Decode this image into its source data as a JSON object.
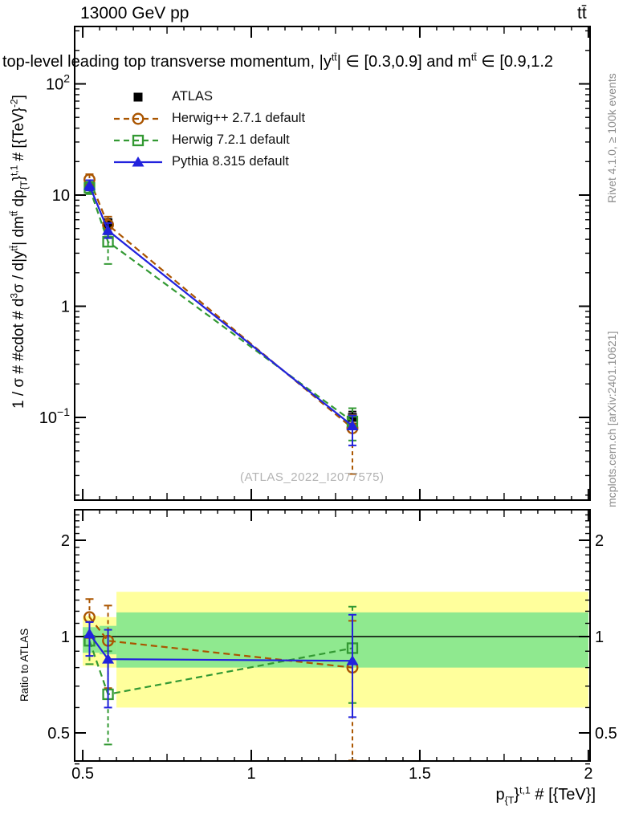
{
  "header": {
    "left": "13000 GeV pp",
    "right": "tt̄"
  },
  "side_texts": {
    "rivet": "Rivet 4.1.0, ≥ 100k events",
    "mcplots": "mcplots.cern.ch [arXiv:2401.10621]",
    "color": "#8c8c8c"
  },
  "watermark": {
    "text": "(ATLAS_2022_I2077575)",
    "color": "#b3b3b3"
  },
  "chart_data": {
    "type": "scatter",
    "title_segments": [
      {
        "t": "top-level leading top transverse momentum, |y"
      },
      {
        "t": "tt̄",
        "v": "sup"
      },
      {
        "t": "| ∈ [0.3,0.9] and m"
      },
      {
        "t": "tt̄",
        "v": "sup"
      },
      {
        "t": " ∈ [0.9,1.2"
      }
    ],
    "xlabel_segments": [
      {
        "t": "p"
      },
      {
        "t": "{T",
        "v": "sub"
      },
      {
        "t": "}"
      },
      {
        "t": "t,1",
        "v": "sup"
      },
      {
        "t": " # [{TeV}]"
      }
    ],
    "x_points": [
      0.52,
      0.575,
      1.3
    ],
    "xlim": [
      0.476,
      2.005
    ],
    "x_tick_labels": [
      "0.5",
      "1",
      "1.5",
      "2"
    ],
    "x_major_ticks": [
      0.5,
      1.0,
      1.5,
      2.0
    ],
    "x_mid_ticks": [
      0.75,
      1.25,
      1.75
    ],
    "x_minor_step": 0.05,
    "main_panel": {
      "ylog": true,
      "ylim": [
        0.018,
        328
      ],
      "y_major_ticks": [
        100,
        10,
        1,
        0.1
      ],
      "y_tick_labels": [
        "10^2",
        "10",
        "1",
        "10^-1"
      ],
      "ylabel_segments": [
        {
          "t": "1 / σ # #cdot # d"
        },
        {
          "t": "3",
          "v": "sup"
        },
        {
          "t": "σ / d|y"
        },
        {
          "t": "tt̄",
          "v": "sup"
        },
        {
          "t": "| dm"
        },
        {
          "t": "tt̄",
          "v": "sup"
        },
        {
          "t": " dp"
        },
        {
          "t": "{T",
          "v": "sub"
        },
        {
          "t": "}"
        },
        {
          "t": "t,1",
          "v": "sup"
        },
        {
          "t": " # [{TeV}"
        },
        {
          "t": "-2",
          "v": "sup"
        },
        {
          "t": "]"
        }
      ]
    },
    "ratio_panel": {
      "ylabel": "Ratio to ATLAS",
      "ylog": true,
      "ylim": [
        0.392,
        2.49
      ],
      "y_major_ticks": [
        0.5,
        1,
        2
      ],
      "y_tick_labels": [
        "0.5",
        "1",
        "2"
      ],
      "reference_line": 1.0,
      "band_colors": {
        "outer": "#ffff9c",
        "inner": "#8fe98f"
      },
      "bands": [
        {
          "x0": 0.5,
          "x1": 0.55,
          "outer": [
            0.81,
            1.16
          ],
          "inner": [
            0.89,
            1.07
          ]
        },
        {
          "x0": 0.55,
          "x1": 0.6,
          "outer": [
            0.8,
            1.15
          ],
          "inner": [
            0.88,
            1.08
          ]
        },
        {
          "x0": 0.6,
          "x1": 2.0,
          "outer": [
            0.6,
            1.38
          ],
          "inner": [
            0.8,
            1.19
          ]
        }
      ]
    },
    "series": [
      {
        "name": "ATLAS",
        "color": "#000000",
        "marker": "square-filled",
        "line": "none",
        "values": [
          12.0,
          5.6,
          0.1
        ],
        "errors": [
          [
            11.2,
            12.9
          ],
          [
            5.1,
            6.1
          ],
          [
            0.088,
            0.113
          ]
        ],
        "ratio": null,
        "ratio_errors": null
      },
      {
        "name": "Herwig++ 2.7.1 default",
        "color": "#aa5500",
        "marker": "circle-open",
        "line": "dashed",
        "values": [
          13.8,
          5.4,
          0.08
        ],
        "errors": [
          [
            12.3,
            15.4
          ],
          [
            4.6,
            6.4
          ],
          [
            0.031,
            0.105
          ]
        ],
        "ratio": [
          1.15,
          0.97,
          0.8
        ],
        "ratio_errors": [
          [
            0.99,
            1.31
          ],
          [
            0.69,
            1.25
          ],
          [
            0.41,
            1.12
          ]
        ]
      },
      {
        "name": "Herwig 7.2.1 default",
        "color": "#339933",
        "marker": "square-open",
        "line": "dashed",
        "values": [
          11.6,
          3.8,
          0.092
        ],
        "errors": [
          [
            10.2,
            13.1
          ],
          [
            2.4,
            4.4
          ],
          [
            0.062,
            0.121
          ]
        ],
        "ratio": [
          0.97,
          0.66,
          0.92
        ],
        "ratio_errors": [
          [
            0.82,
            1.01
          ],
          [
            0.46,
            0.9
          ],
          [
            0.62,
            1.24
          ]
        ]
      },
      {
        "name": "Pythia 8.315 default",
        "color": "#2222dd",
        "marker": "triangle-filled",
        "line": "solid",
        "values": [
          12.2,
          4.8,
          0.084
        ],
        "errors": [
          [
            11.0,
            13.6
          ],
          [
            4.1,
            5.6
          ],
          [
            0.056,
            0.104
          ]
        ],
        "ratio": [
          1.02,
          0.85,
          0.84
        ],
        "ratio_errors": [
          [
            0.87,
            1.11
          ],
          [
            0.6,
            1.05
          ],
          [
            0.56,
            1.17
          ]
        ]
      }
    ]
  }
}
